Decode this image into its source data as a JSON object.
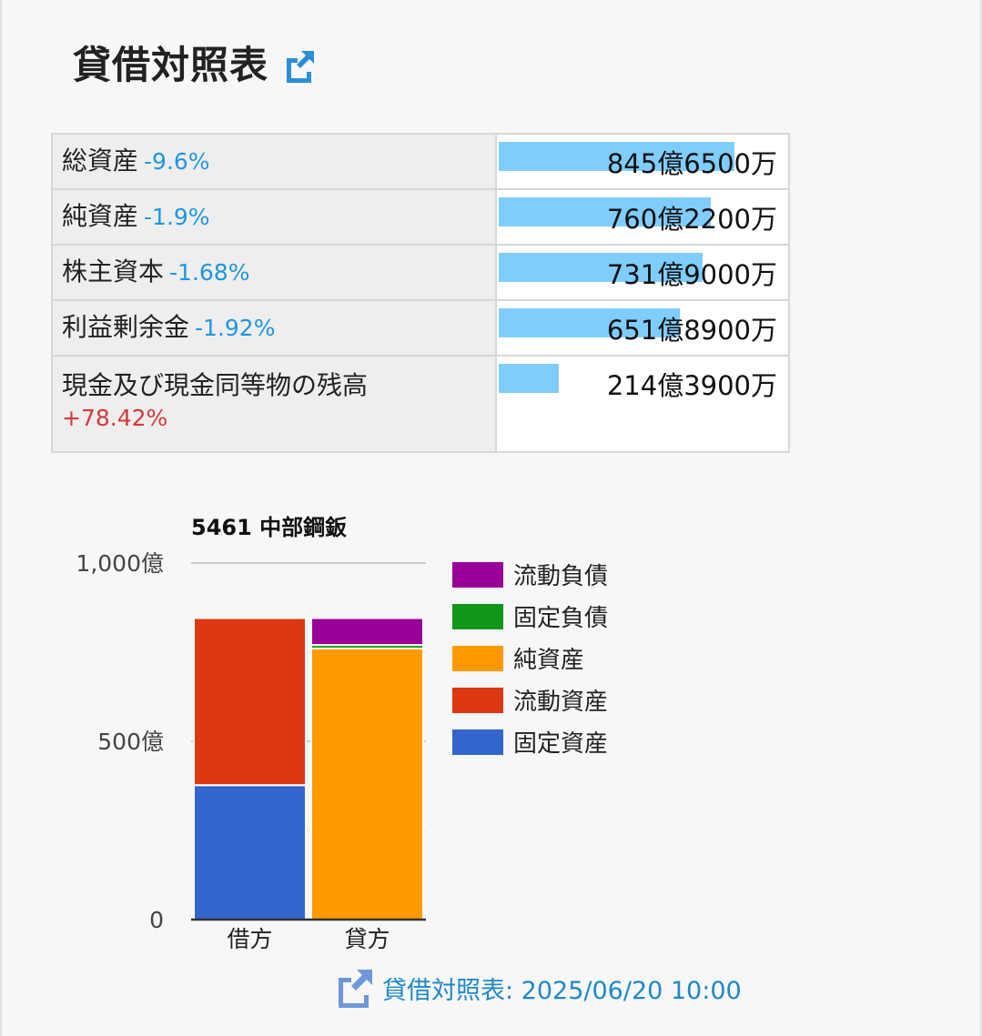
{
  "header": {
    "title": "貸借対照表",
    "link_icon": "external-link-icon"
  },
  "summary": {
    "rows": [
      {
        "label": "総資産",
        "change": "-9.6%",
        "change_dir": "neg",
        "value_text": "845億6500万",
        "bar_value": 845.65
      },
      {
        "label": "純資産",
        "change": "-1.9%",
        "change_dir": "neg",
        "value_text": "760億2200万",
        "bar_value": 760.22
      },
      {
        "label": "株主資本",
        "change": "-1.68%",
        "change_dir": "neg",
        "value_text": "731億9000万",
        "bar_value": 731.9
      },
      {
        "label": "利益剰余金",
        "change": "-1.92%",
        "change_dir": "neg",
        "value_text": "651億8900万",
        "bar_value": 651.89
      },
      {
        "label": "現金及び現金同等物の残高",
        "change": "+78.42%",
        "change_dir": "pos",
        "value_text": "214億3900万",
        "bar_value": 214.39
      }
    ],
    "bar_max": 1000,
    "bar_color": "#7fcdfc"
  },
  "chart_data": {
    "type": "bar",
    "stacked": true,
    "title": "5461 中部鋼鈑",
    "categories": [
      "借方",
      "貸方"
    ],
    "series": [
      {
        "name": "固定資産",
        "color": "#3366cc",
        "values": [
          377,
          0
        ]
      },
      {
        "name": "流動資産",
        "color": "#dc3912",
        "values": [
          468.65,
          0
        ]
      },
      {
        "name": "純資産",
        "color": "#ff9900",
        "values": [
          0,
          760.22
        ]
      },
      {
        "name": "固定負債",
        "color": "#109618",
        "values": [
          0,
          10
        ]
      },
      {
        "name": "流動負債",
        "color": "#990099",
        "values": [
          0,
          75.43
        ]
      }
    ],
    "legend_order": [
      "流動負債",
      "固定負債",
      "純資産",
      "流動資産",
      "固定資産"
    ],
    "legend_position": "right",
    "ylim": [
      0,
      1000
    ],
    "yticks": [
      0,
      500,
      1000
    ],
    "ytick_labels": [
      "0",
      "500億",
      "1,000億"
    ],
    "minor_gridlines": [
      250,
      750
    ],
    "grid": true
  },
  "footer": {
    "link_text": "貸借対照表: 2025/06/20 10:00",
    "link_icon": "external-link-icon"
  }
}
